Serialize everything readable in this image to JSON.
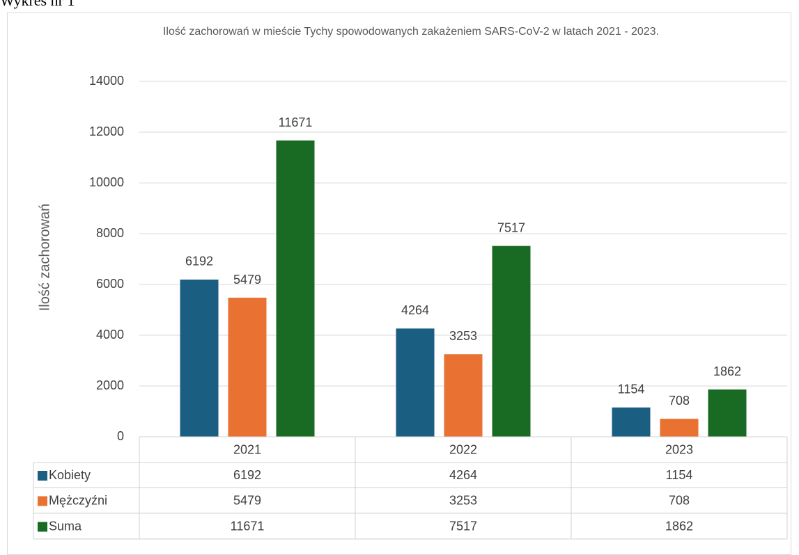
{
  "caption": "Wykres nr 1",
  "chart_data": {
    "type": "bar",
    "title": "Ilość zachorowań w mieście Tychy spowodowanych zakażeniem SARS-CoV-2 w latach 2021 - 2023.",
    "y_label": "Ilość zachorowań",
    "categories": [
      "2021",
      "2022",
      "2023"
    ],
    "series": [
      {
        "name": "Kobiety",
        "color": "#1a5e82",
        "values": [
          6192,
          4264,
          1154
        ]
      },
      {
        "name": "Mężczyźni",
        "color": "#e97132",
        "values": [
          5479,
          3253,
          708
        ]
      },
      {
        "name": "Suma",
        "color": "#196b24",
        "values": [
          11671,
          7517,
          1862
        ]
      }
    ],
    "ylim": [
      0,
      14000
    ],
    "yticks": [
      0,
      2000,
      4000,
      6000,
      8000,
      10000,
      12000,
      14000
    ],
    "grid": true,
    "data_table": true
  }
}
